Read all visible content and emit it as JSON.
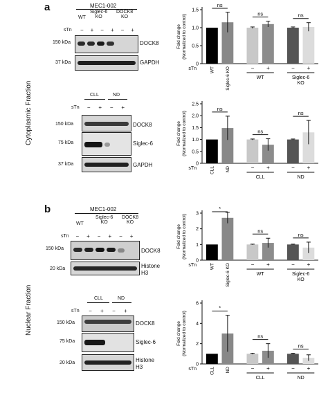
{
  "panel_a": {
    "letter": "a",
    "fraction": "Cytoplasmic Fraction",
    "top_group": {
      "header": "MEC1-002",
      "groups": [
        "WT",
        "Siglec-6\nKO",
        "DOCK8\nKO"
      ],
      "stn_label": "sTn",
      "stn_signs": [
        "−",
        "+",
        "−",
        "+",
        "−",
        "+"
      ],
      "rows": [
        {
          "kda": "150 kDa",
          "protein": "DOCK8"
        },
        {
          "kda": "37 kDa",
          "protein": "GAPDH"
        }
      ]
    },
    "bottom_group": {
      "groups": [
        "CLL",
        "ND"
      ],
      "stn_label": "sTn",
      "stn_signs": [
        "−",
        "+",
        "−",
        "+"
      ],
      "rows": [
        {
          "kda": "150 kDa",
          "protein": "DOCK8"
        },
        {
          "kda": "75 kDa",
          "protein": "Siglec-6"
        },
        {
          "kda": "37 kDa",
          "protein": "GAPDH"
        }
      ]
    }
  },
  "panel_b": {
    "letter": "b",
    "fraction": "Nuclear Fraction",
    "top_group": {
      "header": "MEC1-002",
      "groups": [
        "WT",
        "Siglec-6\nKO",
        "DOCK8\nKO"
      ],
      "stn_label": "sTn",
      "stn_signs": [
        "−",
        "+",
        "−",
        "+",
        "−",
        "+"
      ],
      "rows": [
        {
          "kda": "150 kDa",
          "protein": "DOCK8"
        },
        {
          "kda": "20 kDa",
          "protein": "Histone\nH3"
        }
      ]
    },
    "bottom_group": {
      "groups": [
        "CLL",
        "ND"
      ],
      "stn_label": "sTn",
      "stn_signs": [
        "−",
        "+",
        "−",
        "+"
      ],
      "rows": [
        {
          "kda": "150 kDa",
          "protein": "DOCK8"
        },
        {
          "kda": "75 kDa",
          "protein": "Siglec-6"
        },
        {
          "kda": "20 kDa",
          "protein": "Histone\nH3"
        }
      ]
    }
  },
  "chart_data": [
    {
      "id": "a-top",
      "type": "bar",
      "ylabel": "Fold change\n(Normalized to control)",
      "ylim": [
        0,
        1.5
      ],
      "yticks": [
        "0",
        "0.5",
        "1.0",
        "1.5"
      ],
      "categories": [
        "WT",
        "Siglec-6 KO",
        "−",
        "+",
        "−",
        "+"
      ],
      "stn_row": [
        "−",
        "−",
        "",
        "",
        "",
        ""
      ],
      "group_labels": [
        "WT",
        "Siglec-6\nKO"
      ],
      "values": [
        1.0,
        1.15,
        1.0,
        1.1,
        1.0,
        1.02
      ],
      "errors": [
        0.0,
        0.28,
        0.02,
        0.08,
        0.02,
        0.12
      ],
      "colors": [
        "#000000",
        "#888888",
        "#c8c8c8",
        "#8c8c8c",
        "#555555",
        "#dcdcdc"
      ],
      "annotations": [
        "ns",
        "ns",
        "ns"
      ],
      "stn_label": "sTn"
    },
    {
      "id": "a-bottom",
      "type": "bar",
      "ylabel": "Fold change\n(Normalized to control)",
      "ylim": [
        0,
        2.5
      ],
      "yticks": [
        "0",
        "0.5",
        "1.0",
        "1.5",
        "2.0",
        "2.5"
      ],
      "categories": [
        "CLL",
        "ND",
        "−",
        "+",
        "−",
        "+"
      ],
      "stn_row": [
        "−",
        "−",
        "",
        "",
        "",
        ""
      ],
      "group_labels": [
        "CLL",
        "ND"
      ],
      "values": [
        1.0,
        1.48,
        1.0,
        0.78,
        1.0,
        1.3
      ],
      "errors": [
        0.0,
        0.5,
        0.02,
        0.25,
        0.02,
        0.5
      ],
      "colors": [
        "#000000",
        "#888888",
        "#c8c8c8",
        "#8c8c8c",
        "#555555",
        "#dcdcdc"
      ],
      "annotations": [
        "ns",
        "ns",
        "ns"
      ],
      "stn_label": "sTn"
    },
    {
      "id": "b-top",
      "type": "bar",
      "ylabel": "Fold change\n(Normalized to control)",
      "ylim": [
        0,
        3
      ],
      "yticks": [
        "0",
        "1",
        "2",
        "3"
      ],
      "categories": [
        "WT",
        "Siglec-6 KO",
        "−",
        "+",
        "−",
        "+"
      ],
      "stn_row": [
        "−",
        "−",
        "",
        "",
        "",
        ""
      ],
      "group_labels": [
        "WT",
        "Siglec-6\nKO"
      ],
      "values": [
        1.0,
        2.7,
        1.0,
        1.1,
        1.0,
        0.8
      ],
      "errors": [
        0.0,
        0.35,
        0.02,
        0.3,
        0.02,
        0.35
      ],
      "colors": [
        "#000000",
        "#888888",
        "#c8c8c8",
        "#8c8c8c",
        "#555555",
        "#dcdcdc"
      ],
      "annotations": [
        "*",
        "ns",
        "ns"
      ],
      "stn_label": "sTn"
    },
    {
      "id": "b-bottom",
      "type": "bar",
      "ylabel": "Fold change\n(Normalized to control)",
      "ylim": [
        0,
        6
      ],
      "yticks": [
        "0",
        "2",
        "4",
        "6"
      ],
      "categories": [
        "CLL",
        "ND",
        "−",
        "+",
        "−",
        "+"
      ],
      "stn_row": [
        "−",
        "−",
        "",
        "",
        "",
        ""
      ],
      "group_labels": [
        "CLL",
        "ND"
      ],
      "values": [
        1.0,
        3.0,
        1.0,
        1.3,
        1.0,
        0.6
      ],
      "errors": [
        0.0,
        1.8,
        0.05,
        0.7,
        0.05,
        0.3
      ],
      "colors": [
        "#000000",
        "#888888",
        "#c8c8c8",
        "#8c8c8c",
        "#555555",
        "#dcdcdc"
      ],
      "annotations": [
        "*",
        "ns",
        "ns"
      ],
      "stn_label": "sTn"
    }
  ]
}
